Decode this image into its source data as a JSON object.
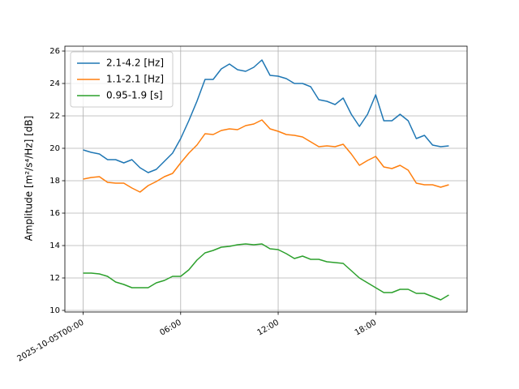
{
  "chart_data": {
    "type": "line",
    "ylabel": "Amplitude [m²/s⁴/Hz] [dB]",
    "x": [
      "2025-10-05T00:00",
      "2025-10-05T00:30",
      "2025-10-05T01:00",
      "2025-10-05T01:30",
      "2025-10-05T02:00",
      "2025-10-05T02:30",
      "2025-10-05T03:00",
      "2025-10-05T03:30",
      "2025-10-05T04:00",
      "2025-10-05T04:30",
      "2025-10-05T05:00",
      "2025-10-05T05:30",
      "2025-10-05T06:00",
      "2025-10-05T06:30",
      "2025-10-05T07:00",
      "2025-10-05T07:30",
      "2025-10-05T08:00",
      "2025-10-05T08:30",
      "2025-10-05T09:00",
      "2025-10-05T09:30",
      "2025-10-05T10:00",
      "2025-10-05T10:30",
      "2025-10-05T11:00",
      "2025-10-05T11:30",
      "2025-10-05T12:00",
      "2025-10-05T12:30",
      "2025-10-05T13:00",
      "2025-10-05T13:30",
      "2025-10-05T14:00",
      "2025-10-05T14:30",
      "2025-10-05T15:00",
      "2025-10-05T15:30",
      "2025-10-05T16:00",
      "2025-10-05T16:30",
      "2025-10-05T17:00",
      "2025-10-05T17:30",
      "2025-10-05T18:00",
      "2025-10-05T18:30",
      "2025-10-05T19:00",
      "2025-10-05T19:30",
      "2025-10-05T20:00",
      "2025-10-05T20:30",
      "2025-10-05T21:00",
      "2025-10-05T21:30",
      "2025-10-05T22:00",
      "2025-10-05T22:30"
    ],
    "series": [
      {
        "name": "2.1-4.2 [Hz]",
        "color": "#1f77b4",
        "values": [
          19.9,
          19.75,
          19.65,
          19.3,
          19.3,
          19.1,
          19.3,
          18.8,
          18.5,
          18.7,
          19.2,
          19.7,
          20.6,
          21.7,
          22.9,
          24.25,
          24.25,
          24.9,
          25.2,
          24.85,
          24.75,
          25.0,
          25.45,
          24.5,
          24.45,
          24.3,
          24.0,
          24.0,
          23.8,
          23.0,
          22.9,
          22.7,
          23.1,
          22.1,
          21.35,
          22.1,
          23.3,
          21.7,
          21.7,
          22.1,
          21.7,
          20.6,
          20.8,
          20.2,
          20.1,
          20.15
        ]
      },
      {
        "name": "1.1-2.1 [Hz]",
        "color": "#ff7f0e",
        "values": [
          18.1,
          18.2,
          18.25,
          17.9,
          17.85,
          17.85,
          17.55,
          17.3,
          17.7,
          17.95,
          18.25,
          18.45,
          19.1,
          19.7,
          20.2,
          20.9,
          20.85,
          21.1,
          21.2,
          21.15,
          21.4,
          21.5,
          21.75,
          21.2,
          21.05,
          20.85,
          20.8,
          20.7,
          20.4,
          20.1,
          20.15,
          20.1,
          20.25,
          19.65,
          18.95,
          19.25,
          19.5,
          18.85,
          18.75,
          18.95,
          18.65,
          17.85,
          17.75,
          17.75,
          17.6,
          17.75
        ]
      },
      {
        "name": "0.95-1.9 [s]",
        "color": "#2ca02c",
        "values": [
          12.3,
          12.3,
          12.25,
          12.1,
          11.75,
          11.6,
          11.4,
          11.4,
          11.4,
          11.7,
          11.85,
          12.1,
          12.1,
          12.5,
          13.1,
          13.55,
          13.7,
          13.9,
          13.95,
          14.05,
          14.1,
          14.05,
          14.1,
          13.8,
          13.75,
          13.5,
          13.2,
          13.35,
          13.15,
          13.15,
          13.0,
          12.95,
          12.9,
          12.45,
          12.0,
          11.7,
          11.4,
          11.1,
          11.1,
          11.3,
          11.3,
          11.05,
          11.05,
          10.85,
          10.65,
          10.95
        ]
      }
    ],
    "xlim": [
      "2025-10-04T22:52:30",
      "2025-10-05T23:37:30"
    ],
    "xticks": [
      {
        "value": "2025-10-05T00:00",
        "label": "2025-10-05T00:00"
      },
      {
        "value": "2025-10-05T06:00",
        "label": "06:00"
      },
      {
        "value": "2025-10-05T12:00",
        "label": "12:00"
      },
      {
        "value": "2025-10-05T18:00",
        "label": "18:00"
      }
    ],
    "ylim": [
      9.9,
      26.3
    ],
    "yticks": [
      10,
      12,
      14,
      16,
      18,
      20,
      22,
      24,
      26
    ],
    "grid": true,
    "legend": "upper-left"
  }
}
